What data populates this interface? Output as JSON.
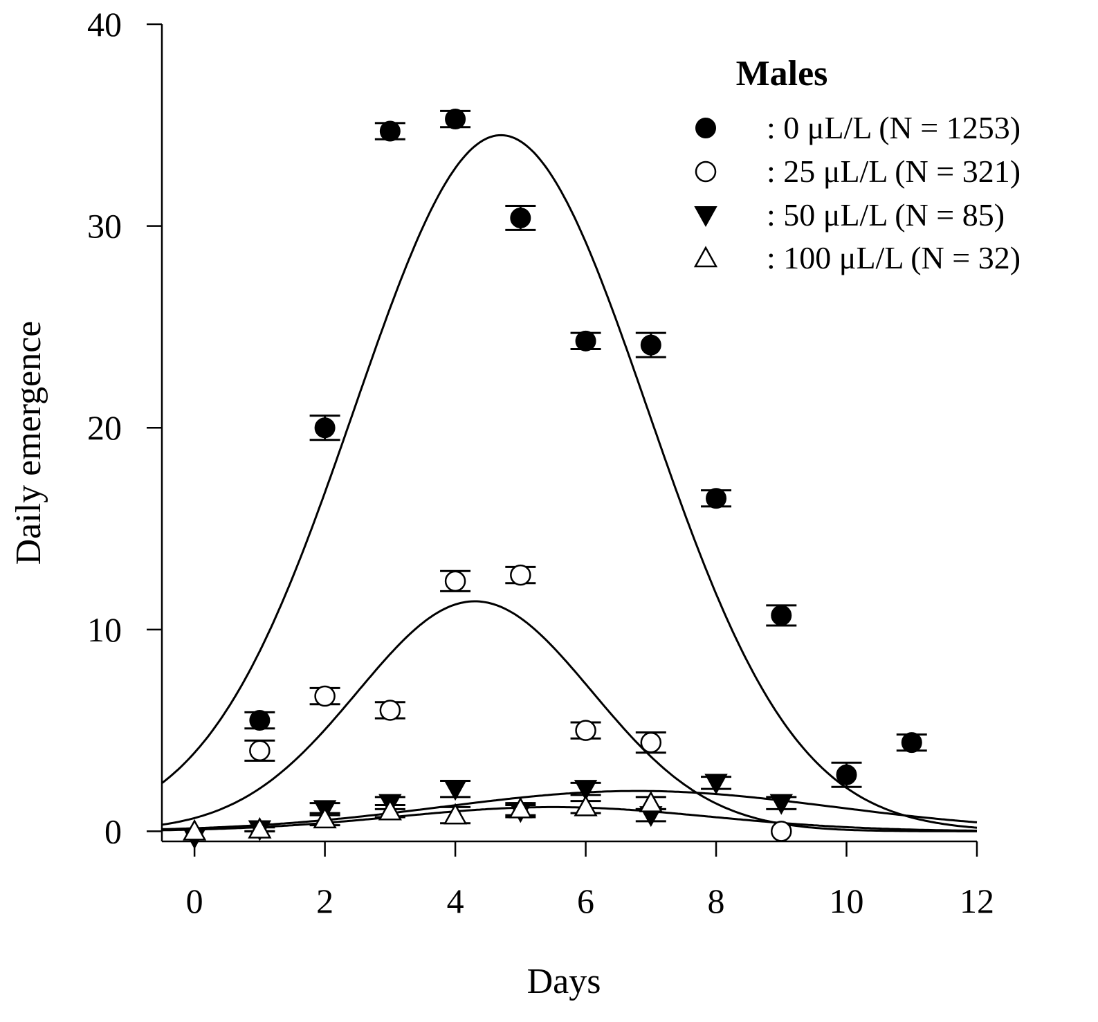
{
  "chart_data": {
    "type": "scatter",
    "title": "",
    "xlabel": "Days",
    "ylabel": "Daily emergence",
    "xlim": [
      -0.5,
      12
    ],
    "ylim": [
      -0.5,
      40
    ],
    "x_ticks": [
      0,
      2,
      4,
      6,
      8,
      10,
      12
    ],
    "y_ticks": [
      0,
      10,
      20,
      30,
      40
    ],
    "x_tick_labels": [
      "0",
      "2",
      "4",
      "6",
      "8",
      "10",
      "12"
    ],
    "y_tick_labels": [
      "0",
      "10",
      "20",
      "30",
      "40"
    ],
    "grid": false,
    "legend": {
      "title": "Males",
      "position": "top-right",
      "entries": [
        ": 0 μL/L (N = 1253)",
        ": 25 μL/L (N = 321)",
        ": 50 μL/L (N = 85)",
        ": 100 μL/L (N = 32)"
      ]
    },
    "series": [
      {
        "name": "0 μL/L (N = 1253)",
        "marker": "filled-circle",
        "x": [
          1,
          2,
          3,
          4,
          5,
          6,
          7,
          8,
          9,
          10,
          11
        ],
        "y": [
          5.5,
          20.0,
          34.7,
          35.3,
          30.4,
          24.3,
          24.1,
          16.5,
          10.7,
          2.8,
          4.4
        ],
        "err": [
          0.4,
          0.6,
          0.4,
          0.4,
          0.6,
          0.4,
          0.6,
          0.4,
          0.5,
          0.6,
          0.4
        ],
        "fit": {
          "amplitude": 34.5,
          "center": 4.7,
          "width": 2.25
        }
      },
      {
        "name": "25 μL/L (N = 321)",
        "marker": "open-circle",
        "x": [
          1,
          2,
          3,
          4,
          5,
          6,
          7,
          9
        ],
        "y": [
          4.0,
          6.7,
          6.0,
          12.4,
          12.7,
          5.0,
          4.4,
          0.0
        ],
        "err": [
          0.5,
          0.4,
          0.4,
          0.5,
          0.4,
          0.4,
          0.5,
          0.0
        ],
        "fit": {
          "amplitude": 11.4,
          "center": 4.3,
          "width": 1.8
        }
      },
      {
        "name": "50 μL/L (N = 85)",
        "marker": "filled-triangle-down",
        "x": [
          0,
          1,
          2,
          3,
          4,
          5,
          6,
          7,
          8,
          9
        ],
        "y": [
          -0.3,
          0.1,
          1.1,
          1.4,
          2.1,
          1.0,
          2.1,
          0.8,
          2.4,
          1.4
        ],
        "err": [
          0.0,
          0.1,
          0.3,
          0.3,
          0.4,
          0.3,
          0.3,
          0.3,
          0.3,
          0.3
        ],
        "fit": {
          "amplitude": 2.0,
          "center": 6.8,
          "width": 3.0
        }
      },
      {
        "name": "100 μL/L (N = 32)",
        "marker": "open-triangle-up",
        "x": [
          0,
          1,
          2,
          3,
          4,
          5,
          6,
          7
        ],
        "y": [
          0.0,
          0.1,
          0.6,
          1.0,
          0.8,
          1.1,
          1.2,
          1.4
        ],
        "err": [
          0.0,
          0.1,
          0.3,
          0.3,
          0.4,
          0.3,
          0.3,
          0.3
        ],
        "fit": {
          "amplitude": 1.2,
          "center": 5.5,
          "width": 2.4
        }
      }
    ]
  }
}
